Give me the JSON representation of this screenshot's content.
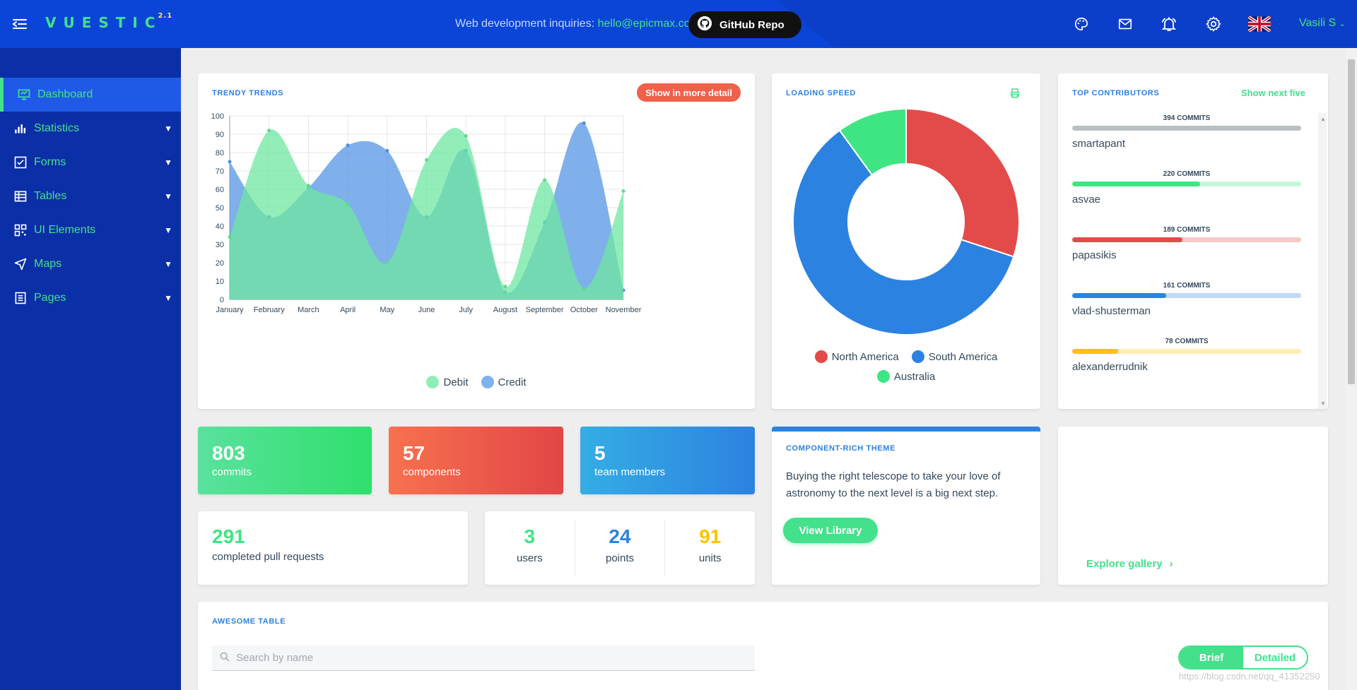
{
  "header": {
    "logo": "VUESTIC",
    "version": "2.1",
    "inquiry_text": "Web development inquiries:",
    "inquiry_email": "hello@epicmax.co",
    "github_label": "GitHub Repo",
    "user_name": "Vasili S"
  },
  "sidebar": {
    "items": [
      {
        "label": "Dashboard",
        "icon": "monitor-icon"
      },
      {
        "label": "Statistics",
        "icon": "bar-chart-icon"
      },
      {
        "label": "Forms",
        "icon": "checkbox-icon"
      },
      {
        "label": "Tables",
        "icon": "table-icon"
      },
      {
        "label": "UI Elements",
        "icon": "grid-icon"
      },
      {
        "label": "Maps",
        "icon": "navigation-icon"
      },
      {
        "label": "Pages",
        "icon": "document-icon"
      }
    ]
  },
  "trends": {
    "title": "TRENDY TRENDS",
    "button": "Show in more detail"
  },
  "chart_data": [
    {
      "type": "area",
      "categories": [
        "January",
        "February",
        "March",
        "April",
        "May",
        "June",
        "July",
        "August",
        "September",
        "October",
        "November"
      ],
      "series": [
        {
          "name": "Debit",
          "color": "#6ee7a0",
          "values": [
            34,
            92,
            62,
            52,
            20,
            76,
            89,
            7,
            65,
            6,
            59
          ]
        },
        {
          "name": "Credit",
          "color": "#5b9ae6",
          "values": [
            75,
            45,
            61,
            84,
            81,
            45,
            81,
            4,
            42,
            96,
            5
          ]
        }
      ],
      "ylim": [
        0,
        100
      ],
      "yticks": [
        0,
        10,
        20,
        30,
        40,
        50,
        60,
        70,
        80,
        90,
        100
      ],
      "grid": true,
      "legend": "bottom"
    },
    {
      "type": "pie",
      "labels": [
        "North America",
        "South America",
        "Australia"
      ],
      "values": [
        30,
        60,
        10
      ],
      "colors": [
        "#e34b4a",
        "#2c82e0",
        "#40e583"
      ],
      "legend": "bottom"
    }
  ],
  "loading": {
    "title": "LOADING SPEED",
    "print_icon": "print-icon"
  },
  "contributors": {
    "title": "TOP CONTRIBUTORS",
    "show_next": "Show next five",
    "items": [
      {
        "commits": "394 COMMITS",
        "name": "smartapant",
        "pct": 100,
        "color": "#babfc2",
        "track": "#e3e5e7"
      },
      {
        "commits": "220 COMMITS",
        "name": "asvae",
        "pct": 56,
        "color": "#40e583",
        "track": "#c6f7da"
      },
      {
        "commits": "189 COMMITS",
        "name": "papasikis",
        "pct": 48,
        "color": "#e34b4a",
        "track": "#f7c9c9"
      },
      {
        "commits": "161 COMMITS",
        "name": "vlad-shusterman",
        "pct": 41,
        "color": "#2c82e0",
        "track": "#c0d9f5"
      },
      {
        "commits": "78 COMMITS",
        "name": "alexanderrudnik",
        "pct": 20,
        "color": "#ffc200",
        "track": "#ffedb3"
      }
    ]
  },
  "tiles": [
    {
      "value": "803",
      "caption": "commits"
    },
    {
      "value": "57",
      "caption": "components"
    },
    {
      "value": "5",
      "caption": "team members"
    }
  ],
  "pull_requests": {
    "value": "291",
    "caption": "completed pull requests"
  },
  "stats": [
    {
      "value": "3",
      "caption": "users",
      "color": "#40e583"
    },
    {
      "value": "24",
      "caption": "points",
      "color": "#2c82e0"
    },
    {
      "value": "91",
      "caption": "units",
      "color": "#ffc200"
    }
  ],
  "theme_card": {
    "title": "COMPONENT-RICH THEME",
    "text": "Buying the right telescope to take your love of astronomy to the next level is a big next step.",
    "button": "View Library"
  },
  "gallery": {
    "link": "Explore gallery"
  },
  "table": {
    "title": "AWESOME TABLE",
    "search_placeholder": "Search by name",
    "toggle_brief": "Brief",
    "toggle_detailed": "Detailed"
  },
  "watermark": "https://blog.csdn.net/qq_41352250"
}
